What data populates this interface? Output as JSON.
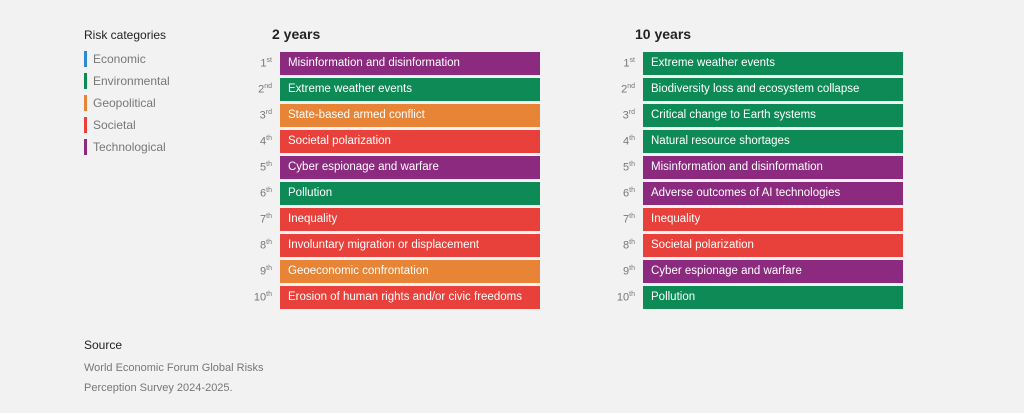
{
  "chart_data": {
    "type": "table",
    "legend": {
      "title": "Risk categories",
      "categories": [
        {
          "name": "Economic",
          "color": "#2a8ad6"
        },
        {
          "name": "Environmental",
          "color": "#0e8a57"
        },
        {
          "name": "Geopolitical",
          "color": "#e88435"
        },
        {
          "name": "Societal",
          "color": "#e8403a"
        },
        {
          "name": "Technological",
          "color": "#8b2a7e"
        }
      ]
    },
    "columns": [
      {
        "title": "2 years",
        "rows": [
          {
            "rank": "1",
            "suffix": "st",
            "label": "Misinformation and disinformation",
            "category": "Technological"
          },
          {
            "rank": "2",
            "suffix": "nd",
            "label": "Extreme weather events",
            "category": "Environmental"
          },
          {
            "rank": "3",
            "suffix": "rd",
            "label": "State-based armed conflict",
            "category": "Geopolitical"
          },
          {
            "rank": "4",
            "suffix": "th",
            "label": "Societal polarization",
            "category": "Societal"
          },
          {
            "rank": "5",
            "suffix": "th",
            "label": "Cyber espionage and warfare",
            "category": "Technological"
          },
          {
            "rank": "6",
            "suffix": "th",
            "label": "Pollution",
            "category": "Environmental"
          },
          {
            "rank": "7",
            "suffix": "th",
            "label": "Inequality",
            "category": "Societal"
          },
          {
            "rank": "8",
            "suffix": "th",
            "label": "Involuntary migration or displacement",
            "category": "Societal"
          },
          {
            "rank": "9",
            "suffix": "th",
            "label": "Geoeconomic confrontation",
            "category": "Geopolitical"
          },
          {
            "rank": "10",
            "suffix": "th",
            "label": "Erosion of human rights and/or civic freedoms",
            "category": "Societal"
          }
        ]
      },
      {
        "title": "10 years",
        "rows": [
          {
            "rank": "1",
            "suffix": "st",
            "label": "Extreme weather events",
            "category": "Environmental"
          },
          {
            "rank": "2",
            "suffix": "nd",
            "label": "Biodiversity loss and ecosystem collapse",
            "category": "Environmental"
          },
          {
            "rank": "3",
            "suffix": "rd",
            "label": "Critical change to Earth systems",
            "category": "Environmental"
          },
          {
            "rank": "4",
            "suffix": "th",
            "label": "Natural resource shortages",
            "category": "Environmental"
          },
          {
            "rank": "5",
            "suffix": "th",
            "label": "Misinformation and disinformation",
            "category": "Technological"
          },
          {
            "rank": "6",
            "suffix": "th",
            "label": "Adverse outcomes of AI technologies",
            "category": "Technological"
          },
          {
            "rank": "7",
            "suffix": "th",
            "label": "Inequality",
            "category": "Societal"
          },
          {
            "rank": "8",
            "suffix": "th",
            "label": "Societal polarization",
            "category": "Societal"
          },
          {
            "rank": "9",
            "suffix": "th",
            "label": "Cyber espionage and warfare",
            "category": "Technological"
          },
          {
            "rank": "10",
            "suffix": "th",
            "label": "Pollution",
            "category": "Environmental"
          }
        ]
      }
    ]
  },
  "source": {
    "title": "Source",
    "text": "World Economic Forum Global Risks Perception Survey 2024-2025."
  }
}
